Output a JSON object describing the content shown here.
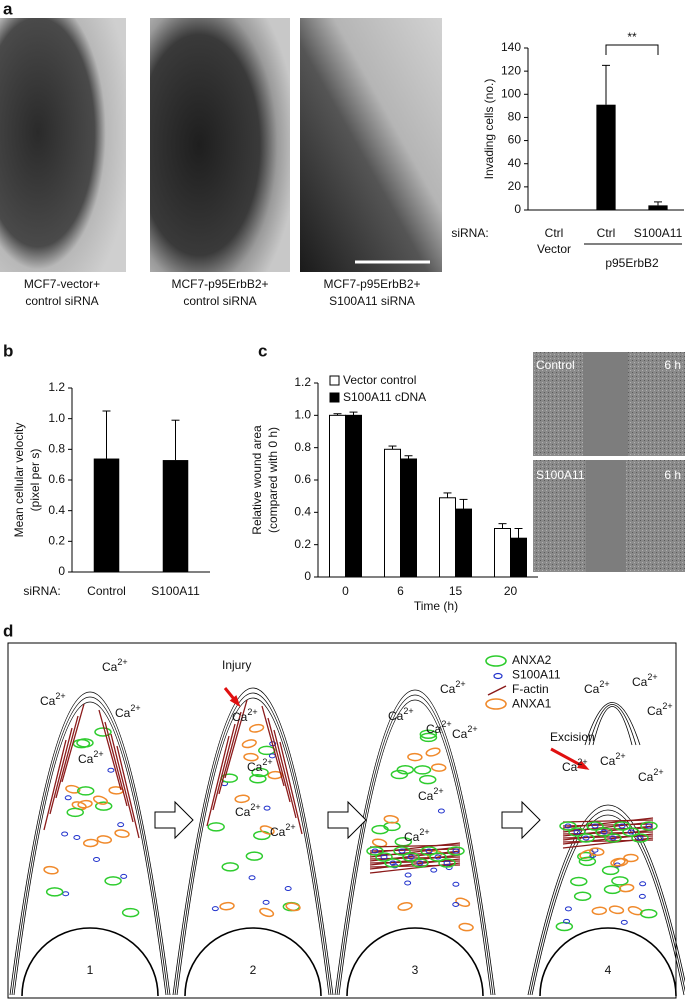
{
  "panel_labels": [
    "a",
    "b",
    "c",
    "d"
  ],
  "images": {
    "a": [
      {
        "caption": [
          "MCF7-vector+",
          "control siRNA"
        ]
      },
      {
        "caption": [
          "MCF7-p95ErbB2+",
          "control siRNA"
        ]
      },
      {
        "caption": [
          "MCF7-p95ErbB2+",
          "S100A11 siRNA"
        ]
      }
    ],
    "c": [
      {
        "label": "Control",
        "time": "6 h"
      },
      {
        "label": "S100A11",
        "time": "6 h"
      }
    ]
  },
  "chart_data": [
    {
      "type": "bar",
      "y_label": "Invading cells (no.)",
      "x_row_label": "siRNA:",
      "categories": [
        "Ctrl",
        "Ctrl",
        "S100A11"
      ],
      "groups": [
        "Vector",
        "p95ErbB2"
      ],
      "values": [
        0,
        91,
        4
      ],
      "errors": [
        0,
        34,
        3
      ],
      "color": "#000000",
      "ylim": [
        0,
        140
      ],
      "yticks": [
        0,
        20,
        40,
        60,
        80,
        100,
        120,
        140
      ],
      "annotation": "**"
    },
    {
      "type": "bar",
      "y_label": [
        "Mean cellular velocity",
        "(pixel per s)"
      ],
      "x_row_label": "siRNA:",
      "categories": [
        "Control",
        "S100A11"
      ],
      "values": [
        0.74,
        0.73
      ],
      "errors": [
        0.31,
        0.26
      ],
      "color": "#000000",
      "ylim": [
        0,
        1.2
      ],
      "yticks": [
        0,
        0.2,
        0.4,
        0.6,
        0.8,
        {
          "value": 1,
          "label": "1.0"
        },
        1.2
      ]
    },
    {
      "type": "grouped-bar",
      "y_label": [
        "Relative wound area",
        "(compared with 0 h)"
      ],
      "x_label": "Time (h)",
      "categories": [
        "0",
        "6",
        "15",
        "20"
      ],
      "series": [
        {
          "name": "Vector control",
          "color": "#ffffff",
          "values": [
            1.0,
            0.79,
            0.49,
            0.3
          ],
          "errors": [
            0.01,
            0.02,
            0.03,
            0.03
          ]
        },
        {
          "name": "S100A11 cDNA",
          "color": "#000000",
          "values": [
            1.0,
            0.73,
            0.42,
            0.24
          ],
          "errors": [
            0.02,
            0.02,
            0.06,
            0.06
          ]
        }
      ],
      "ylim": [
        0,
        1.2
      ],
      "yticks": [
        0,
        0.2,
        0.4,
        0.6,
        0.8,
        {
          "value": 1,
          "label": "1.0"
        },
        1.2
      ]
    }
  ],
  "diagram": {
    "ion": {
      "symbol": "Ca",
      "charge": "2+"
    },
    "injury": "Injury",
    "excision": "Excision",
    "legend": [
      "ANXA2",
      "S100A11",
      "F-actin",
      "ANXA1"
    ],
    "steps": [
      "1",
      "2",
      "3",
      "4"
    ]
  }
}
